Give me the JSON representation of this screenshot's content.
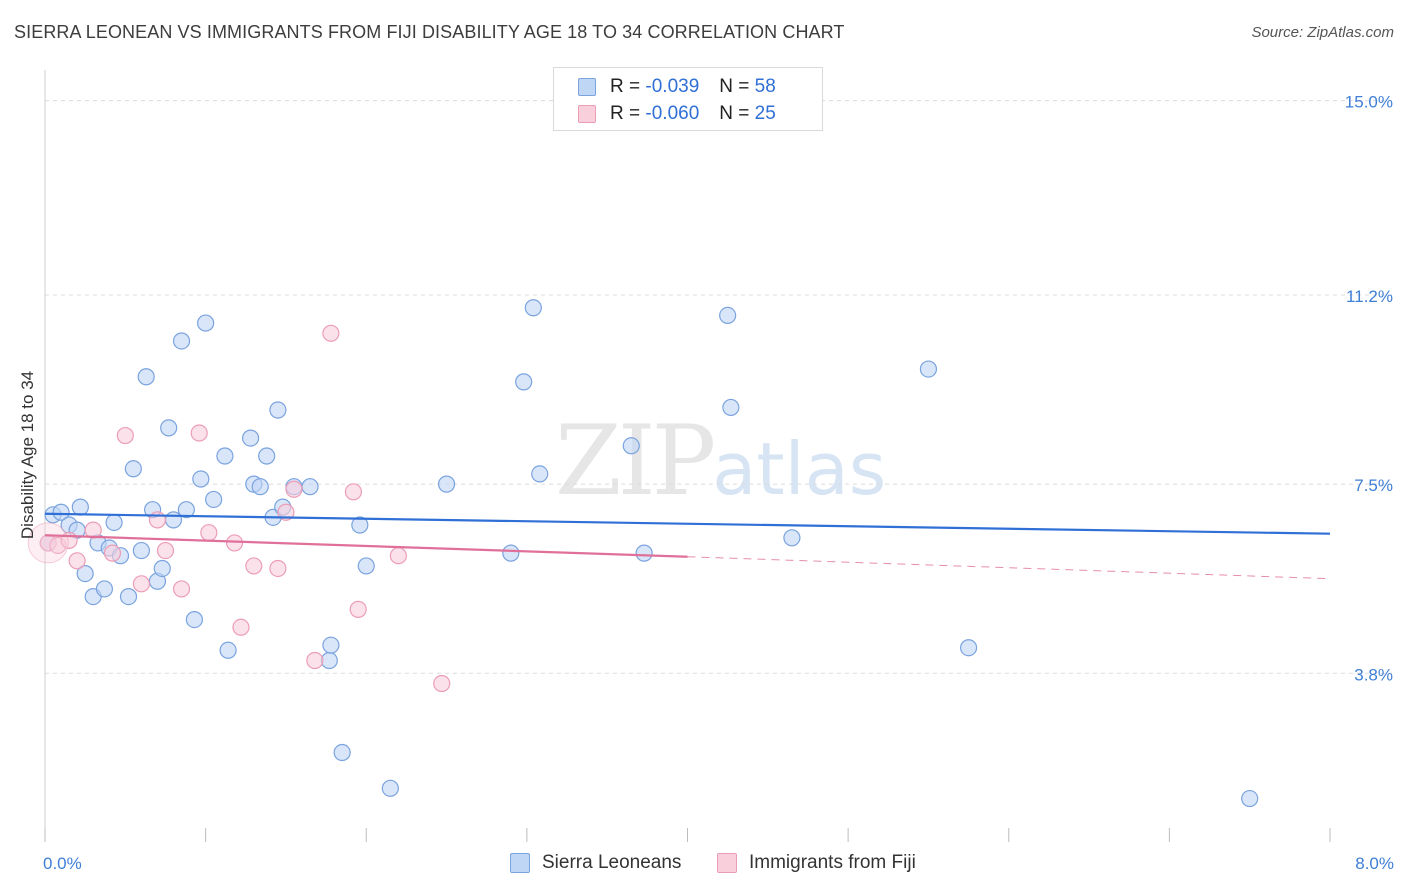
{
  "header": {
    "title": "SIERRA LEONEAN VS IMMIGRANTS FROM FIJI DISABILITY AGE 18 TO 34 CORRELATION CHART",
    "source": "Source: ZipAtlas.com"
  },
  "legend": {
    "rows": [
      {
        "r_label": "R =",
        "r_value": "-0.039",
        "n_label": "N =",
        "n_value": "58"
      },
      {
        "r_label": "R =",
        "r_value": "-0.060",
        "n_label": "N =",
        "n_value": "25"
      }
    ]
  },
  "bottom_legend": {
    "items": [
      {
        "label": "Sierra Leoneans"
      },
      {
        "label": "Immigrants from Fiji"
      }
    ]
  },
  "watermark": {
    "zip": "ZIP",
    "atlas": "atlas"
  },
  "colors": {
    "blue_fill": "#c0d6f5",
    "blue_stroke": "#7aa3df",
    "blue_line": "#2f6fd6",
    "pink_fill": "#f9cfdc",
    "pink_stroke": "#ec9db6",
    "pink_line": "#e0709a",
    "tick_label": "#3f7fd6",
    "grid": "#dcdcdc"
  },
  "chart_data": {
    "type": "scatter",
    "title": "SIERRA LEONEAN VS IMMIGRANTS FROM FIJI DISABILITY AGE 18 TO 34 CORRELATION CHART",
    "xlabel": "",
    "ylabel": "Disability Age 18 to 34",
    "xlim": [
      0,
      8.0
    ],
    "ylim": [
      0.5,
      15.6
    ],
    "x_tick_labels": [
      {
        "value": 0,
        "label": "0.0%"
      },
      {
        "value": 8.0,
        "label": "8.0%"
      }
    ],
    "y_ticks": [
      {
        "value": 15.0,
        "label": "15.0%"
      },
      {
        "value": 11.2,
        "label": "11.2%"
      },
      {
        "value": 7.5,
        "label": "7.5%"
      },
      {
        "value": 3.8,
        "label": "3.8%"
      }
    ],
    "grid": true,
    "series": [
      {
        "name": "Sierra Leoneans",
        "trend": {
          "x": [
            0,
            8.0
          ],
          "y": [
            6.92,
            6.53
          ]
        },
        "points": [
          [
            0.05,
            6.9
          ],
          [
            0.1,
            6.95
          ],
          [
            0.15,
            6.7
          ],
          [
            0.2,
            6.6
          ],
          [
            0.22,
            7.05
          ],
          [
            0.25,
            5.75
          ],
          [
            0.3,
            5.3
          ],
          [
            0.33,
            6.35
          ],
          [
            0.37,
            5.45
          ],
          [
            0.4,
            6.25
          ],
          [
            0.43,
            6.75
          ],
          [
            0.47,
            6.1
          ],
          [
            0.52,
            5.3
          ],
          [
            0.55,
            7.8
          ],
          [
            0.6,
            6.2
          ],
          [
            0.63,
            9.6
          ],
          [
            0.67,
            7.0
          ],
          [
            0.7,
            5.6
          ],
          [
            0.73,
            5.85
          ],
          [
            0.77,
            8.6
          ],
          [
            0.8,
            6.8
          ],
          [
            0.85,
            10.3
          ],
          [
            0.88,
            7.0
          ],
          [
            0.93,
            4.85
          ],
          [
            0.97,
            7.6
          ],
          [
            1.0,
            10.65
          ],
          [
            1.05,
            7.2
          ],
          [
            1.12,
            8.05
          ],
          [
            1.14,
            4.25
          ],
          [
            1.28,
            8.4
          ],
          [
            1.3,
            7.5
          ],
          [
            1.34,
            7.45
          ],
          [
            1.38,
            8.05
          ],
          [
            1.42,
            6.85
          ],
          [
            1.45,
            8.95
          ],
          [
            1.48,
            7.05
          ],
          [
            1.55,
            7.45
          ],
          [
            1.65,
            7.45
          ],
          [
            1.77,
            4.05
          ],
          [
            1.78,
            4.35
          ],
          [
            1.85,
            2.25
          ],
          [
            1.96,
            6.7
          ],
          [
            2.0,
            5.9
          ],
          [
            2.15,
            1.55
          ],
          [
            2.5,
            7.5
          ],
          [
            2.9,
            6.15
          ],
          [
            2.98,
            9.5
          ],
          [
            3.04,
            10.95
          ],
          [
            3.08,
            7.7
          ],
          [
            3.65,
            8.25
          ],
          [
            3.73,
            6.15
          ],
          [
            4.25,
            10.8
          ],
          [
            4.27,
            9.0
          ],
          [
            4.65,
            6.45
          ],
          [
            5.5,
            9.75
          ],
          [
            5.75,
            4.3
          ],
          [
            7.5,
            1.35
          ],
          [
            0.02,
            6.35
          ]
        ]
      },
      {
        "name": "Immigrants from Fiji",
        "trend": {
          "x": [
            0,
            4.0
          ],
          "y": [
            6.5,
            6.08
          ],
          "dashed_to": {
            "x": 8.0,
            "y": 5.65
          }
        },
        "points": [
          [
            0.02,
            6.35
          ],
          [
            0.08,
            6.3
          ],
          [
            0.15,
            6.4
          ],
          [
            0.2,
            6.0
          ],
          [
            0.3,
            6.6
          ],
          [
            0.42,
            6.15
          ],
          [
            0.5,
            8.45
          ],
          [
            0.6,
            5.55
          ],
          [
            0.7,
            6.8
          ],
          [
            0.75,
            6.2
          ],
          [
            0.85,
            5.45
          ],
          [
            0.96,
            8.5
          ],
          [
            1.02,
            6.55
          ],
          [
            1.18,
            6.35
          ],
          [
            1.22,
            4.7
          ],
          [
            1.3,
            5.9
          ],
          [
            1.45,
            5.85
          ],
          [
            1.5,
            6.95
          ],
          [
            1.55,
            7.4
          ],
          [
            1.68,
            4.05
          ],
          [
            1.78,
            10.45
          ],
          [
            1.92,
            7.35
          ],
          [
            1.95,
            5.05
          ],
          [
            2.2,
            6.1
          ],
          [
            2.47,
            3.6
          ]
        ]
      }
    ]
  }
}
